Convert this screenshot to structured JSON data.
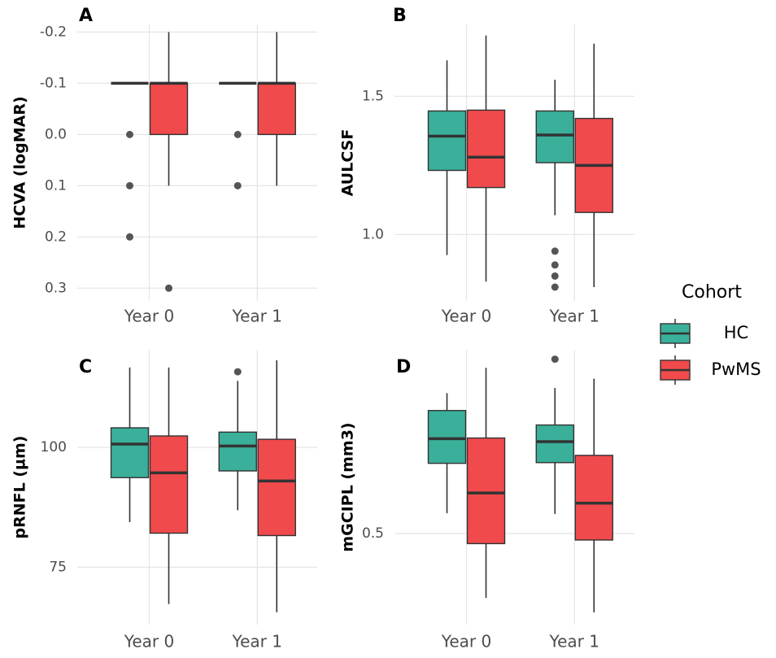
{
  "chart_data": {
    "type": "box",
    "legend_title": "Cohort",
    "legend_position": "right",
    "series": [
      {
        "name": "HC",
        "color": "#3aaf9a"
      },
      {
        "name": "PwMS",
        "color": "#f04a4c"
      }
    ],
    "panels": [
      {
        "label": "A",
        "ylabel": "HCVA (logMAR)",
        "categories": [
          "Year 0",
          "Year 1"
        ],
        "reverse_y": true,
        "ylim": [
          -0.215,
          0.325
        ],
        "yticks": [
          -0.2,
          -0.1,
          {
            "value": 0,
            "label": "0.0"
          },
          0.1,
          0.2,
          0.3
        ],
        "boxes": [
          [
            {
              "whislo": -0.1,
              "q1": -0.1,
              "med": -0.1,
              "q3": -0.1,
              "whishi": -0.1,
              "fliers": [
                0,
                0.1,
                0.2
              ]
            },
            {
              "whislo": -0.2,
              "q1": -0.1,
              "med": -0.1,
              "q3": 0,
              "whishi": 0.1,
              "fliers": [
                0.3
              ]
            }
          ],
          [
            {
              "whislo": -0.1,
              "q1": -0.1,
              "med": -0.1,
              "q3": -0.1,
              "whishi": -0.1,
              "fliers": [
                0,
                0.1
              ]
            },
            {
              "whislo": -0.2,
              "q1": -0.1,
              "med": -0.1,
              "q3": 0,
              "whishi": 0.1,
              "fliers": []
            }
          ]
        ]
      },
      {
        "label": "B",
        "ylabel": "AULCSF",
        "categories": [
          "Year 0",
          "Year 1"
        ],
        "reverse_y": false,
        "ylim": [
          0.76,
          1.76
        ],
        "yticks": [
          {
            "value": 1,
            "label": "1.0"
          },
          1.5
        ],
        "boxes": [
          [
            {
              "whislo": 0.926,
              "q1": 1.232,
              "med": 1.356,
              "q3": 1.447,
              "whishi": 1.63,
              "fliers": []
            },
            {
              "whislo": 0.83,
              "q1": 1.17,
              "med": 1.28,
              "q3": 1.45,
              "whishi": 1.72,
              "fliers": []
            }
          ],
          [
            {
              "whislo": 1.07,
              "q1": 1.26,
              "med": 1.36,
              "q3": 1.447,
              "whishi": 1.56,
              "fliers": [
                0.94,
                0.89,
                0.85,
                0.81
              ]
            },
            {
              "whislo": 0.81,
              "q1": 1.08,
              "med": 1.25,
              "q3": 1.42,
              "whishi": 1.69,
              "fliers": []
            }
          ]
        ]
      },
      {
        "label": "C",
        "ylabel": "pRNFL (µm)",
        "categories": [
          "Year 0",
          "Year 1"
        ],
        "reverse_y": false,
        "ylim": [
          63,
          120.4
        ],
        "yticks": [
          75,
          100
        ],
        "boxes": [
          [
            {
              "whislo": 84.4,
              "q1": 93.7,
              "med": 100.7,
              "q3": 104.1,
              "whishi": 116.7,
              "fliers": []
            },
            {
              "whislo": 67.3,
              "q1": 82.1,
              "med": 94.7,
              "q3": 102.4,
              "whishi": 116.7,
              "fliers": []
            }
          ],
          [
            {
              "whislo": 86.9,
              "q1": 95.1,
              "med": 100.3,
              "q3": 103.2,
              "whishi": 113.9,
              "fliers": [
                115.8
              ]
            },
            {
              "whislo": 65.6,
              "q1": 81.6,
              "med": 93.0,
              "q3": 101.7,
              "whishi": 118.2,
              "fliers": []
            }
          ]
        ]
      },
      {
        "label": "D",
        "ylabel": "mGCIPL (mm3)",
        "categories": [
          "Year 0",
          "Year 1"
        ],
        "reverse_y": false,
        "ylim": [
          0.374,
          0.754
        ],
        "yticks": [
          0.5
        ],
        "boxes": [
          [
            {
              "whislo": 0.528,
              "q1": 0.597,
              "med": 0.631,
              "q3": 0.67,
              "whishi": 0.694,
              "fliers": []
            },
            {
              "whislo": 0.411,
              "q1": 0.486,
              "med": 0.556,
              "q3": 0.632,
              "whishi": 0.729,
              "fliers": []
            }
          ],
          [
            {
              "whislo": 0.527,
              "q1": 0.598,
              "med": 0.627,
              "q3": 0.65,
              "whishi": 0.701,
              "fliers": [
                0.741
              ]
            },
            {
              "whislo": 0.391,
              "q1": 0.491,
              "med": 0.542,
              "q3": 0.608,
              "whishi": 0.714,
              "fliers": []
            }
          ]
        ]
      }
    ]
  }
}
